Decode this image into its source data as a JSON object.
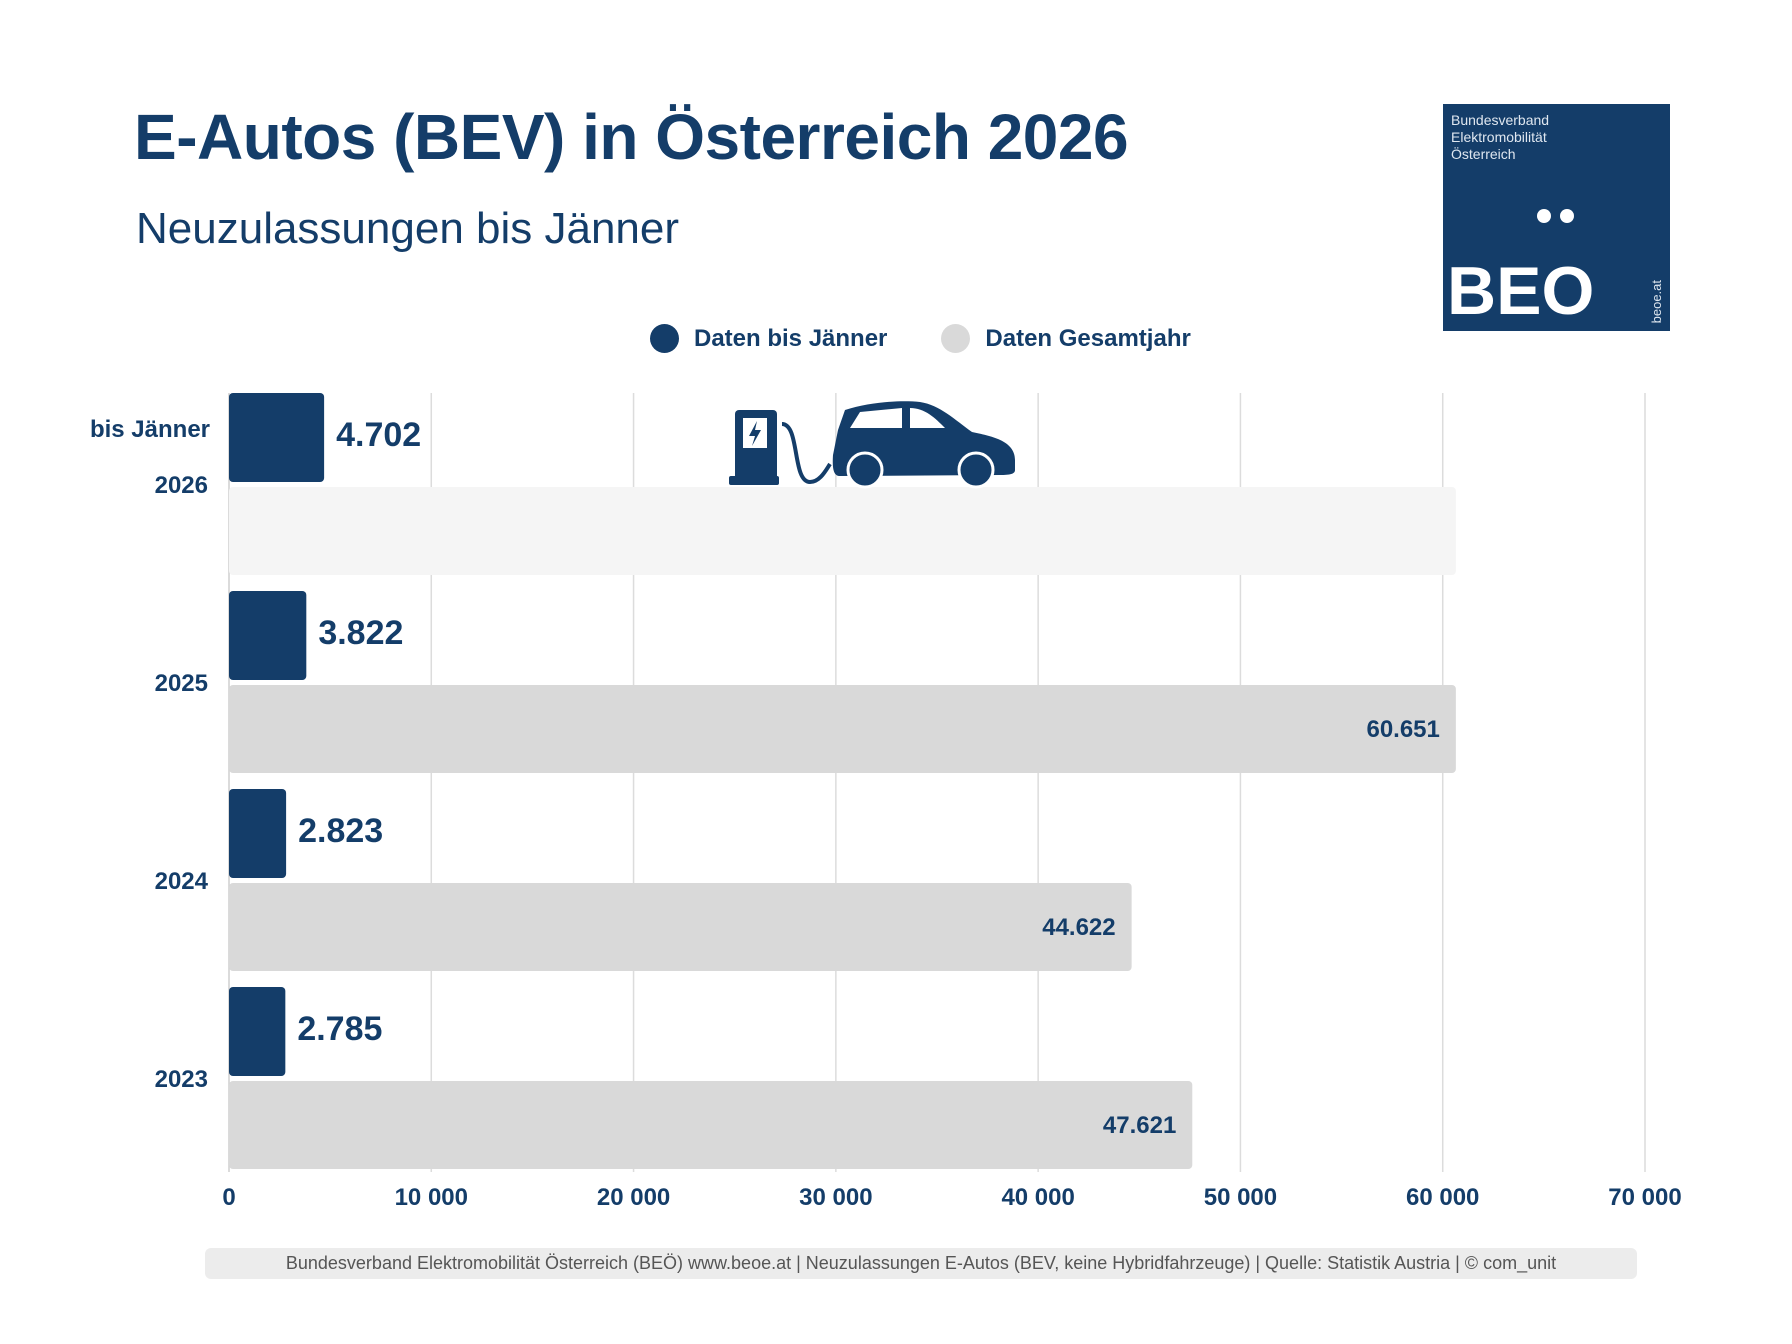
{
  "header": {
    "title": "E-Autos (BEV) in Österreich 2026",
    "subtitle": "Neuzulassungen bis Jänner"
  },
  "logo": {
    "text_lines": [
      "Bundesverband",
      "Elektromobilität",
      "Österreich"
    ],
    "wordmark": "BEO",
    "url": "beoe.at"
  },
  "colors": {
    "dark": "#143d69",
    "light": "#d9d9d9",
    "placeholder": "#f5f5f5"
  },
  "icons": [
    "charging-station-icon",
    "car-icon"
  ],
  "chart_data": {
    "type": "bar",
    "orientation": "horizontal",
    "categories": [
      "2026",
      "2025",
      "2024",
      "2023"
    ],
    "category_note": "bis Jänner",
    "series": [
      {
        "name": "Daten bis Jänner",
        "color": "#143d69",
        "values": [
          4702,
          3822,
          2823,
          2785
        ],
        "labels": [
          "4.702",
          "3.822",
          "2.823",
          "2.785"
        ]
      },
      {
        "name": "Daten Gesamtjahr",
        "color": "#d9d9d9",
        "values": [
          null,
          60651,
          44622,
          47621
        ],
        "labels": [
          "",
          "60.651",
          "44.622",
          "47.621"
        ]
      }
    ],
    "xlim": [
      0,
      70000
    ],
    "xticks": [
      0,
      10000,
      20000,
      30000,
      40000,
      50000,
      60000,
      70000
    ],
    "xtick_labels": [
      "0",
      "10 000",
      "20 000",
      "30 000",
      "40 000",
      "50 000",
      "60 000",
      "70 000"
    ],
    "grid": true,
    "legend_position": "top"
  },
  "footer": "Bundesverband Elektromobilität Österreich (BEÖ) www.beoe.at | Neuzulassungen E-Autos (BEV, keine Hybridfahrzeuge) | Quelle: Statistik Austria | © com_unit"
}
